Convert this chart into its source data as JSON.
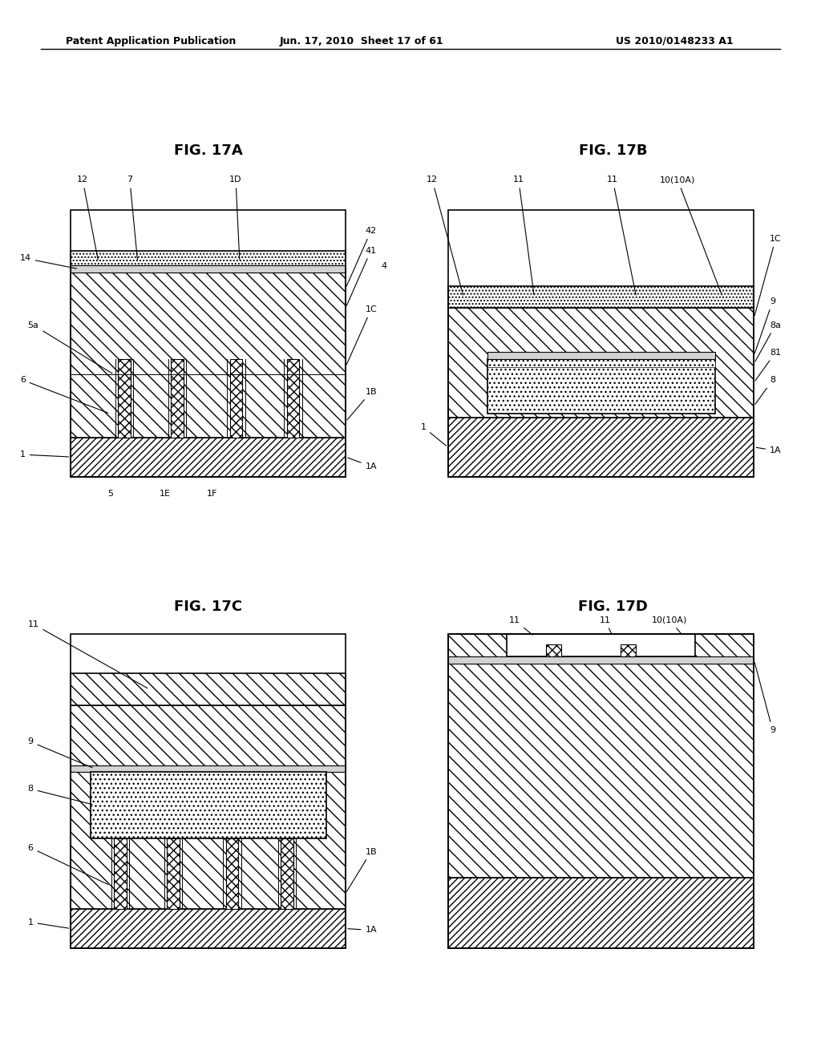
{
  "header_left": "Patent Application Publication",
  "header_mid": "Jun. 17, 2010  Sheet 17 of 61",
  "header_right": "US 2010/0148233 A1",
  "fig_titles": [
    "FIG. 17A",
    "FIG. 17B",
    "FIG. 17C",
    "FIG. 17D"
  ],
  "background_color": "#ffffff",
  "line_color": "#000000"
}
